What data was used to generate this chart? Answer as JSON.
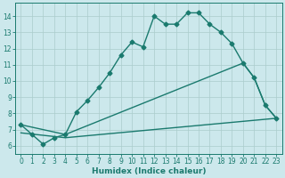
{
  "line1_x": [
    0,
    1,
    2,
    3,
    4,
    5,
    6,
    7,
    8,
    9,
    10,
    11,
    12,
    13,
    14,
    15,
    16,
    17,
    18,
    19,
    20,
    21,
    22,
    23
  ],
  "line1_y": [
    7.3,
    6.7,
    6.1,
    6.5,
    6.7,
    8.1,
    8.8,
    9.6,
    10.5,
    11.6,
    12.4,
    12.1,
    14.0,
    13.5,
    13.5,
    14.2,
    14.2,
    13.5,
    13.0,
    12.3,
    11.1,
    10.2,
    8.5,
    7.7
  ],
  "line2_x": [
    0,
    4,
    20,
    21,
    22,
    23
  ],
  "line2_y": [
    7.3,
    6.7,
    11.1,
    10.2,
    8.5,
    7.7
  ],
  "line3_x": [
    0,
    4,
    23
  ],
  "line3_y": [
    6.8,
    6.5,
    7.7
  ],
  "line_color": "#1a7a6e",
  "bg_color": "#cce8ec",
  "grid_color": "#aacccc",
  "xlabel": "Humidex (Indice chaleur)",
  "xlim": [
    -0.5,
    23.5
  ],
  "ylim": [
    5.5,
    14.8
  ],
  "yticks": [
    6,
    7,
    8,
    9,
    10,
    11,
    12,
    13,
    14
  ],
  "xticks": [
    0,
    1,
    2,
    3,
    4,
    5,
    6,
    7,
    8,
    9,
    10,
    11,
    12,
    13,
    14,
    15,
    16,
    17,
    18,
    19,
    20,
    21,
    22,
    23
  ],
  "marker": "D",
  "markersize": 2.5,
  "linewidth": 1.0,
  "tick_fontsize": 5.5,
  "xlabel_fontsize": 6.5
}
